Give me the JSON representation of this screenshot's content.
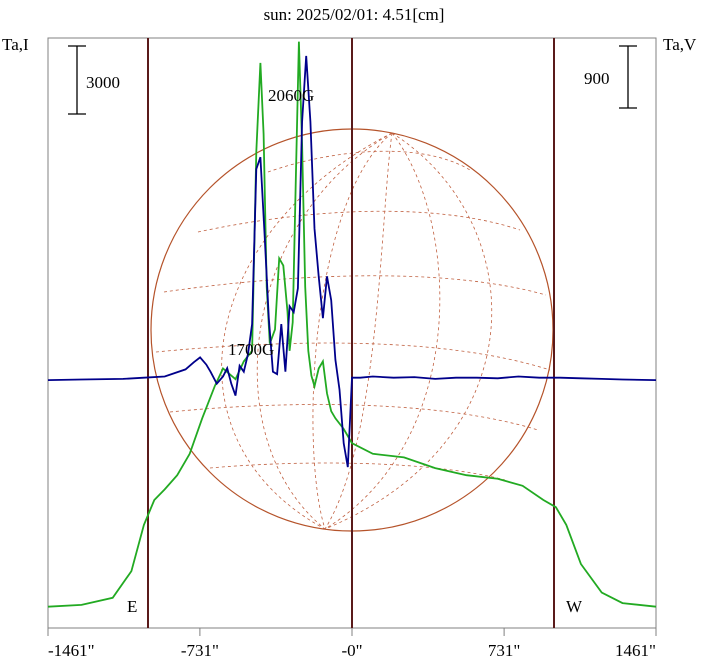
{
  "chart_data": {
    "type": "line",
    "title": "sun: 2025/02/01: 4.51[cm]",
    "y_left_label": "Ta,I",
    "y_right_label": "Ta,V",
    "scale_bar_left": "3000",
    "scale_bar_right": "900",
    "x_ticks": [
      {
        "value": -1461,
        "label": "-1461\""
      },
      {
        "value": -731,
        "label": "-731\""
      },
      {
        "value": 0,
        "label": "-0\""
      },
      {
        "value": 731,
        "label": "731\""
      },
      {
        "value": 1461,
        "label": "1461\""
      }
    ],
    "xlim": [
      -1461,
      1461
    ],
    "limb_markers": [
      {
        "label": "E",
        "x": -980
      },
      {
        "label": "W",
        "x": 965
      }
    ],
    "annotations": [
      {
        "text": "2060G",
        "x": -390,
        "y_I": 14500
      },
      {
        "text": "1700G",
        "x": -580,
        "y_I": 6100
      }
    ],
    "series": [
      {
        "key": "I",
        "color": "#22aa22",
        "ylim": [
          -600,
          16000
        ],
        "x": [
          -1461,
          -1300,
          -1150,
          -1060,
          -1000,
          -950,
          -900,
          -840,
          -780,
          -720,
          -660,
          -620,
          -560,
          -520,
          -480,
          -460,
          -440,
          -425,
          -410,
          -395,
          -370,
          -350,
          -330,
          -310,
          -300,
          -285,
          -270,
          -255,
          -240,
          -225,
          -210,
          -195,
          -180,
          -160,
          -140,
          -120,
          -100,
          -80,
          -40,
          0,
          100,
          250,
          400,
          550,
          700,
          820,
          920,
          980,
          1030,
          1100,
          1200,
          1300,
          1461
        ],
        "y": [
          0,
          50,
          250,
          1000,
          2300,
          3000,
          3300,
          3700,
          4300,
          5300,
          6200,
          6700,
          6400,
          6900,
          7200,
          12800,
          15300,
          13300,
          9000,
          7400,
          7800,
          9800,
          9600,
          8300,
          7200,
          8000,
          12000,
          15900,
          13000,
          9000,
          7200,
          6500,
          6200,
          6700,
          6900,
          6000,
          5500,
          5300,
          5000,
          4600,
          4300,
          4200,
          3900,
          3700,
          3600,
          3400,
          3000,
          2800,
          2300,
          1200,
          400,
          100,
          0
        ]
      },
      {
        "key": "V",
        "color": "#00008b",
        "ylim": [
          -150,
          4800
        ],
        "x": [
          -1461,
          -1300,
          -1100,
          -1000,
          -900,
          -800,
          -760,
          -730,
          -700,
          -680,
          -650,
          -620,
          -600,
          -580,
          -560,
          -540,
          -520,
          -500,
          -480,
          -460,
          -440,
          -420,
          -400,
          -380,
          -360,
          -340,
          -320,
          -300,
          -280,
          -260,
          -240,
          -220,
          -200,
          -180,
          -160,
          -140,
          -120,
          -100,
          -80,
          -60,
          -40,
          -20,
          0,
          40,
          100,
          200,
          300,
          400,
          500,
          600,
          700,
          800,
          900,
          1000,
          1100,
          1200,
          1300,
          1461
        ],
        "y": [
          1930,
          1935,
          1940,
          1950,
          1960,
          2020,
          2080,
          2120,
          2060,
          2000,
          1900,
          1960,
          2030,
          1900,
          1800,
          2050,
          2000,
          2150,
          2400,
          3700,
          3800,
          3150,
          2450,
          2000,
          1980,
          2400,
          2000,
          2550,
          2500,
          2700,
          4100,
          4650,
          4100,
          3200,
          2800,
          2450,
          2800,
          2600,
          2100,
          1850,
          1400,
          1200,
          1950,
          1950,
          1960,
          1950,
          1955,
          1940,
          1950,
          1950,
          1945,
          1960,
          1950,
          1950,
          1945,
          1940,
          1935,
          1930
        ]
      }
    ],
    "grid": false
  }
}
